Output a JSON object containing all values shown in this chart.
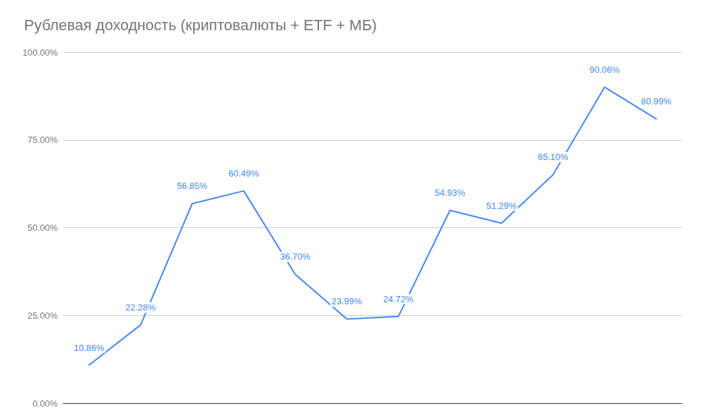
{
  "chart_data": {
    "type": "line",
    "title": "Рублевая доходность (криптовалюты + ETF + МБ)",
    "categories": [
      null,
      null,
      null,
      null,
      null,
      null,
      null,
      null,
      null,
      null,
      null,
      null
    ],
    "series": [
      {
        "color": "#4285f4",
        "values": [
          10.86,
          22.28,
          56.85,
          60.49,
          36.7,
          23.99,
          24.72,
          54.93,
          51.29,
          65.1,
          90.06,
          80.99
        ],
        "value_labels": [
          "10.86%",
          "22.28%",
          "56.85%",
          "60.49%",
          "36.70%",
          "23.99%",
          "24.72%",
          "54.93%",
          "51.29%",
          "65.10%",
          "90.06%",
          "80.99%"
        ]
      }
    ],
    "ylim": [
      0,
      100
    ],
    "yticks": [
      {
        "value": 0,
        "label": "0.00%"
      },
      {
        "value": 25,
        "label": "25.00%"
      },
      {
        "value": 50,
        "label": "50.00%"
      },
      {
        "value": 75,
        "label": "75.00%"
      },
      {
        "value": 100,
        "label": "100.00%"
      }
    ],
    "grid": "y",
    "marker": "none",
    "line_style": "solid"
  }
}
